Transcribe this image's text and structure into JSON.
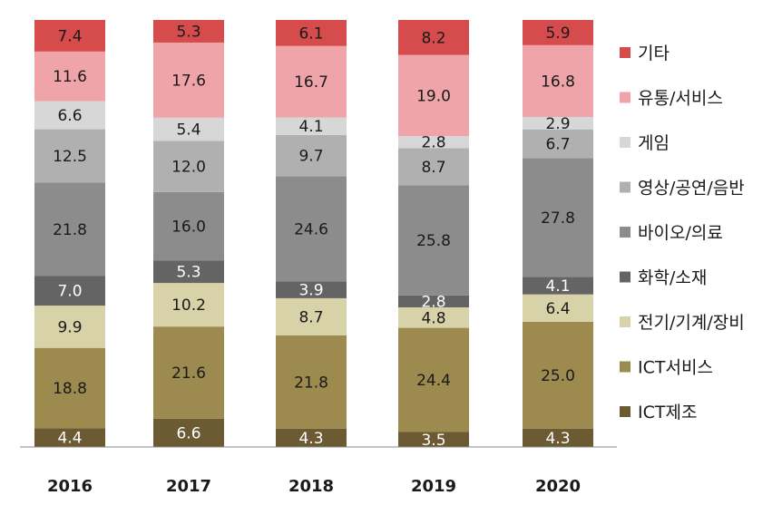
{
  "chart_data": {
    "type": "bar",
    "stacked": true,
    "percent": true,
    "categories": [
      "2016",
      "2017",
      "2018",
      "2019",
      "2020"
    ],
    "series": [
      {
        "name": "ICT제조",
        "color": "#6b5a32",
        "values": [
          4.4,
          6.6,
          4.3,
          3.5,
          4.3
        ]
      },
      {
        "name": "ICT서비스",
        "color": "#9c8a4e",
        "values": [
          18.8,
          21.6,
          21.8,
          24.4,
          25.0
        ]
      },
      {
        "name": "전기/기계/장비",
        "color": "#d8d2a8",
        "values": [
          9.9,
          10.2,
          8.7,
          4.8,
          6.4
        ]
      },
      {
        "name": "화학/소재",
        "color": "#646464",
        "values": [
          7.0,
          5.3,
          3.9,
          2.8,
          4.1
        ]
      },
      {
        "name": "바이오/의료",
        "color": "#8c8c8c",
        "values": [
          21.8,
          16.0,
          24.6,
          25.8,
          27.8
        ]
      },
      {
        "name": "영상/공연/음반",
        "color": "#b0b0b0",
        "values": [
          12.5,
          12.0,
          9.7,
          8.7,
          6.7
        ]
      },
      {
        "name": "게임",
        "color": "#d7d7d7",
        "values": [
          6.6,
          5.4,
          4.1,
          2.8,
          2.9
        ]
      },
      {
        "name": "유통/서비스",
        "color": "#eea4a8",
        "values": [
          11.6,
          17.6,
          16.7,
          19.0,
          16.8
        ]
      },
      {
        "name": "기타",
        "color": "#d64b4b",
        "values": [
          7.4,
          5.3,
          6.1,
          8.2,
          5.9
        ]
      }
    ],
    "legend_order": [
      "기타",
      "유통/서비스",
      "게임",
      "영상/공연/음반",
      "바이오/의료",
      "화학/소재",
      "전기/기계/장비",
      "ICT서비스",
      "ICT제조"
    ],
    "legend_position": "right",
    "title": "",
    "xlabel": "",
    "ylabel": "",
    "ylim": [
      0,
      100
    ],
    "grid": false
  }
}
